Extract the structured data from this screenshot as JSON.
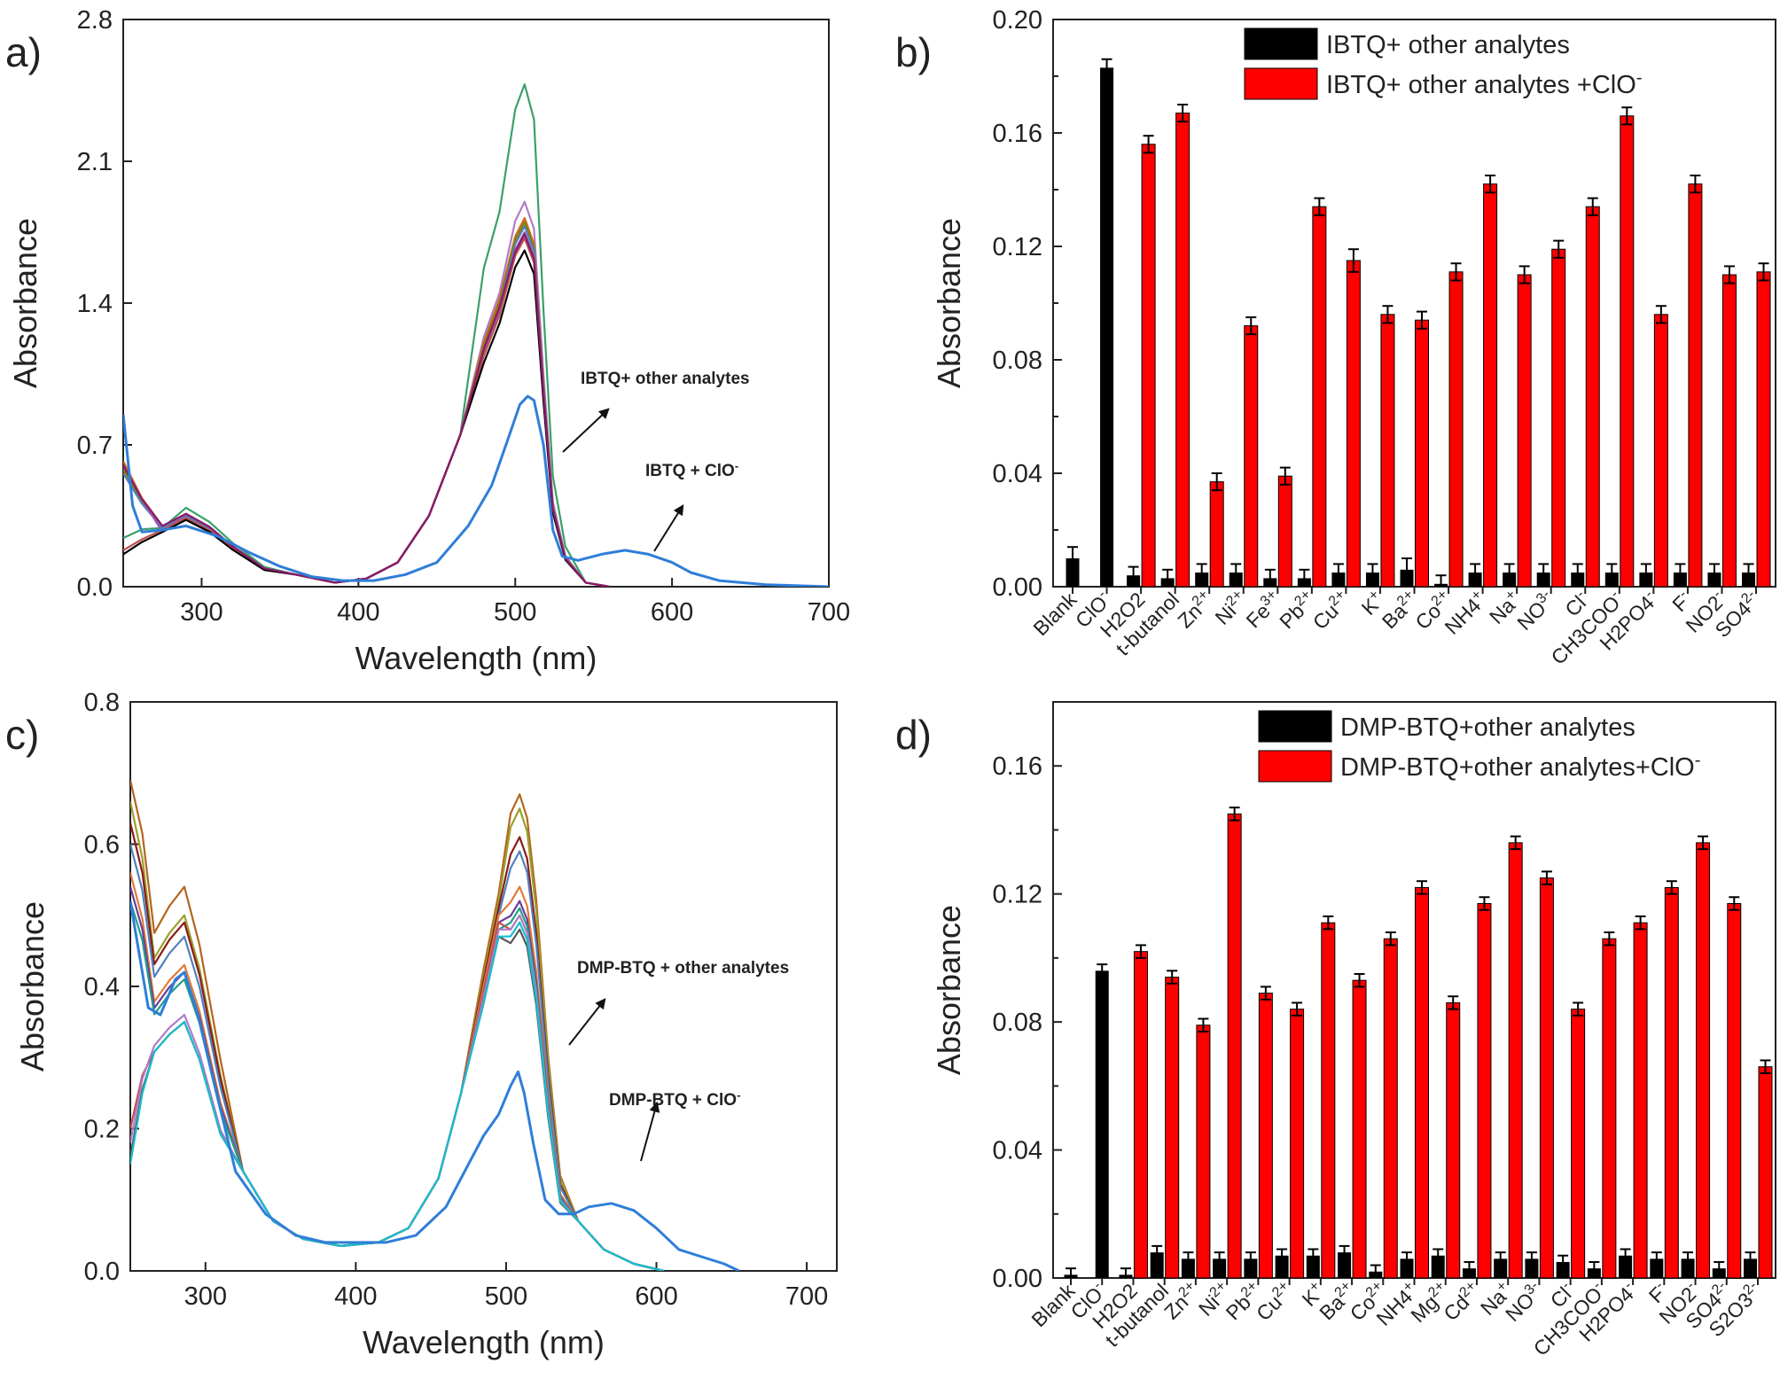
{
  "chart_data": [
    {
      "panel": "a)",
      "type": "line",
      "xlabel": "Wavelength (nm)",
      "ylabel": "Absorbance",
      "xlim": [
        250,
        700
      ],
      "ylim": [
        0,
        2.8
      ],
      "xticks": [
        "300",
        "400",
        "500",
        "600",
        "700"
      ],
      "yticks": [
        "0.0",
        "0.7",
        "1.4",
        "2.1",
        "2.8"
      ],
      "annotations": [
        {
          "id": "ann1",
          "text": "IBTQ+ other analytes"
        },
        {
          "id": "ann2",
          "text": "IBTQ + ClO",
          "sup": "-"
        }
      ],
      "series": [
        {
          "name": "IBTQ + other analytes (green)",
          "color": "#3aa06a",
          "peak": 2.48,
          "uv": 0.39,
          "base": 0.29,
          "start": 0.24,
          "shoulder": 1.85
        },
        {
          "name": "analyte 2",
          "color": "#b07cc8",
          "peak": 1.9,
          "uv": 0.36,
          "base": 0.28,
          "start": 0.6,
          "shoulder": 1.45
        },
        {
          "name": "analyte 3",
          "color": "#d2691e",
          "peak": 1.82,
          "uv": 0.35,
          "base": 0.3,
          "start": 0.62,
          "shoulder": 1.42
        },
        {
          "name": "analyte 4",
          "color": "#808000",
          "peak": 1.8,
          "uv": 0.34,
          "base": 0.3,
          "start": 0.58,
          "shoulder": 1.4
        },
        {
          "name": "analyte 5",
          "color": "#4f81bd",
          "peak": 1.78,
          "uv": 0.35,
          "base": 0.29,
          "start": 0.56,
          "shoulder": 1.38
        },
        {
          "name": "analyte 6",
          "color": "#9b59b6",
          "peak": 1.75,
          "uv": 0.36,
          "base": 0.27,
          "start": 0.6,
          "shoulder": 1.36
        },
        {
          "name": "analyte 7",
          "color": "#c0504d",
          "peak": 1.72,
          "uv": 0.34,
          "base": 0.28,
          "start": 0.18,
          "shoulder": 1.34
        },
        {
          "name": "analyte 8",
          "color": "#000000",
          "peak": 1.66,
          "uv": 0.33,
          "base": 0.27,
          "start": 0.16,
          "shoulder": 1.3
        },
        {
          "name": "analyte 9",
          "color": "#8b1a6b",
          "peak": 1.74,
          "uv": 0.36,
          "base": 0.3,
          "start": 0.6,
          "shoulder": 1.38
        },
        {
          "name": "IBTQ + ClO-",
          "color": "#2f7ed8",
          "points": [
            [
              250,
              0.85
            ],
            [
              256,
              0.4
            ],
            [
              262,
              0.27
            ],
            [
              275,
              0.28
            ],
            [
              290,
              0.3
            ],
            [
              310,
              0.25
            ],
            [
              330,
              0.17
            ],
            [
              350,
              0.1
            ],
            [
              370,
              0.05
            ],
            [
              390,
              0.03
            ],
            [
              410,
              0.03
            ],
            [
              430,
              0.06
            ],
            [
              450,
              0.12
            ],
            [
              470,
              0.3
            ],
            [
              485,
              0.5
            ],
            [
              495,
              0.72
            ],
            [
              503,
              0.9
            ],
            [
              508,
              0.94
            ],
            [
              512,
              0.92
            ],
            [
              518,
              0.7
            ],
            [
              524,
              0.28
            ],
            [
              530,
              0.15
            ],
            [
              540,
              0.13
            ],
            [
              555,
              0.16
            ],
            [
              570,
              0.18
            ],
            [
              585,
              0.16
            ],
            [
              600,
              0.12
            ],
            [
              612,
              0.07
            ],
            [
              630,
              0.03
            ],
            [
              660,
              0.01
            ],
            [
              700,
              0.0
            ]
          ]
        }
      ]
    },
    {
      "panel": "b)",
      "type": "bar",
      "ylabel": "Absorbance",
      "ylim": [
        0,
        0.2
      ],
      "yticks": [
        "0.00",
        "0.04",
        "0.08",
        "0.12",
        "0.16",
        "0.20"
      ],
      "legend": [
        {
          "label": "IBTQ+ other analytes",
          "color": "#000000"
        },
        {
          "label": "IBTQ+ other analytes +ClO",
          "sup": "-",
          "color": "#ff0000"
        }
      ],
      "categories": [
        {
          "base": "Blank",
          "sup": "",
          "sub": ""
        },
        {
          "base": "ClO",
          "sup": "-",
          "sub": ""
        },
        {
          "base": "H2O2",
          "sup": "",
          "sub": ""
        },
        {
          "base": "t-butanol",
          "sup": "",
          "sub": ""
        },
        {
          "base": "Zn",
          "sup": "2+",
          "sub": ""
        },
        {
          "base": "Ni",
          "sup": "2+",
          "sub": ""
        },
        {
          "base": "Fe",
          "sup": "3+",
          "sub": ""
        },
        {
          "base": "Pb",
          "sup": "2+",
          "sub": ""
        },
        {
          "base": "Cu",
          "sup": "2+",
          "sub": ""
        },
        {
          "base": "K",
          "sup": "+",
          "sub": ""
        },
        {
          "base": "Ba",
          "sup": "2+",
          "sub": ""
        },
        {
          "base": "Co",
          "sup": "2+",
          "sub": ""
        },
        {
          "base": "NH4",
          "sup": "+",
          "sub": ""
        },
        {
          "base": "Na",
          "sup": "+",
          "sub": ""
        },
        {
          "base": "NO",
          "sup": "3-",
          "sub": ""
        },
        {
          "base": "Cl",
          "sup": "-",
          "sub": ""
        },
        {
          "base": "CH3COO",
          "sup": "-",
          "sub": ""
        },
        {
          "base": "H2PO4",
          "sup": "-",
          "sub": ""
        },
        {
          "base": "F",
          "sup": "-",
          "sub": ""
        },
        {
          "base": "NO2",
          "sup": "-",
          "sub": ""
        },
        {
          "base": "SO4",
          "sup": "2-",
          "sub": ""
        }
      ],
      "series": [
        {
          "name": "IBTQ+ other analytes",
          "values": [
            0.01,
            0.183,
            0.004,
            0.003,
            0.005,
            0.005,
            0.003,
            0.003,
            0.005,
            0.005,
            0.006,
            0.001,
            0.005,
            0.005,
            0.005,
            0.005,
            0.005,
            0.005,
            0.005,
            0.005,
            0.005
          ],
          "errors": [
            0.004,
            0.003,
            0.003,
            0.003,
            0.003,
            0.003,
            0.003,
            0.003,
            0.003,
            0.003,
            0.004,
            0.003,
            0.003,
            0.003,
            0.003,
            0.003,
            0.003,
            0.003,
            0.003,
            0.003,
            0.003
          ]
        },
        {
          "name": "IBTQ+ other analytes +ClO-",
          "values": [
            null,
            null,
            0.156,
            0.167,
            0.037,
            0.092,
            0.039,
            0.134,
            0.115,
            0.096,
            0.094,
            0.111,
            0.142,
            0.11,
            0.119,
            0.134,
            0.166,
            0.096,
            0.142,
            0.11,
            0.111
          ],
          "errors": [
            0,
            0,
            0.003,
            0.003,
            0.003,
            0.003,
            0.003,
            0.003,
            0.004,
            0.003,
            0.003,
            0.003,
            0.003,
            0.003,
            0.003,
            0.003,
            0.003,
            0.003,
            0.003,
            0.003,
            0.003
          ]
        }
      ]
    },
    {
      "panel": "c)",
      "type": "line",
      "xlabel": "Wavelength (nm)",
      "ylabel": "Absorbance",
      "xlim": [
        250,
        720
      ],
      "ylim": [
        0,
        0.8
      ],
      "xticks": [
        "300",
        "400",
        "500",
        "600",
        "700"
      ],
      "yticks": [
        "0.0",
        "0.2",
        "0.4",
        "0.6",
        "0.8"
      ],
      "annotations": [
        {
          "id": "ann1",
          "text": "DMP-BTQ + other analytes"
        },
        {
          "id": "ann2",
          "text": "DMP-BTQ + ClO",
          "sup": "-"
        }
      ],
      "series": [
        {
          "name": "analyte 1",
          "color": "#b5651d",
          "start": 0.69,
          "uv": 0.54,
          "peak": 0.67,
          "shoulder": 0.53
        },
        {
          "name": "analyte 2",
          "color": "#9aa02a",
          "start": 0.66,
          "uv": 0.5,
          "peak": 0.65,
          "shoulder": 0.52
        },
        {
          "name": "analyte 3",
          "color": "#8b1a1a",
          "start": 0.63,
          "uv": 0.49,
          "peak": 0.61,
          "shoulder": 0.51
        },
        {
          "name": "analyte 4",
          "color": "#4f81bd",
          "start": 0.6,
          "uv": 0.47,
          "peak": 0.59,
          "shoulder": 0.5
        },
        {
          "name": "analyte 5",
          "color": "#e07b39",
          "start": 0.56,
          "uv": 0.43,
          "peak": 0.54,
          "shoulder": 0.5
        },
        {
          "name": "analyte 6",
          "color": "#6a3d9a",
          "start": 0.54,
          "uv": 0.42,
          "peak": 0.52,
          "shoulder": 0.49
        },
        {
          "name": "analyte 7",
          "color": "#1f9e89",
          "start": 0.52,
          "uv": 0.41,
          "peak": 0.51,
          "shoulder": 0.48
        },
        {
          "name": "analyte 8",
          "color": "#c0504d",
          "start": 0.2,
          "uv": 0.35,
          "peak": 0.5,
          "shoulder": 0.49
        },
        {
          "name": "analyte 9",
          "color": "#b07cc8",
          "start": 0.18,
          "uv": 0.36,
          "peak": 0.5,
          "shoulder": 0.48
        },
        {
          "name": "analyte 10",
          "color": "#555555",
          "start": 0.16,
          "uv": 0.35,
          "peak": 0.48,
          "shoulder": 0.47
        },
        {
          "name": "analyte 11",
          "color": "#17becf",
          "start": 0.15,
          "uv": 0.35,
          "peak": 0.49,
          "shoulder": 0.47
        },
        {
          "name": "DMP-BTQ + ClO-",
          "color": "#2f7ed8",
          "points": [
            [
              250,
              0.52
            ],
            [
              262,
              0.37
            ],
            [
              270,
              0.36
            ],
            [
              280,
              0.41
            ],
            [
              286,
              0.42
            ],
            [
              295,
              0.36
            ],
            [
              305,
              0.27
            ],
            [
              320,
              0.14
            ],
            [
              340,
              0.08
            ],
            [
              360,
              0.05
            ],
            [
              380,
              0.04
            ],
            [
              400,
              0.04
            ],
            [
              420,
              0.04
            ],
            [
              440,
              0.05
            ],
            [
              460,
              0.09
            ],
            [
              475,
              0.15
            ],
            [
              485,
              0.19
            ],
            [
              495,
              0.22
            ],
            [
              503,
              0.26
            ],
            [
              508,
              0.28
            ],
            [
              512,
              0.25
            ],
            [
              518,
              0.18
            ],
            [
              526,
              0.1
            ],
            [
              535,
              0.08
            ],
            [
              545,
              0.08
            ],
            [
              555,
              0.09
            ],
            [
              570,
              0.095
            ],
            [
              585,
              0.085
            ],
            [
              600,
              0.06
            ],
            [
              615,
              0.03
            ],
            [
              630,
              0.02
            ],
            [
              645,
              0.01
            ],
            [
              655,
              0.0
            ]
          ]
        }
      ]
    },
    {
      "panel": "d)",
      "type": "bar",
      "ylabel": "Absorbance",
      "ylim": [
        0,
        0.18
      ],
      "yticks": [
        "0.00",
        "0.04",
        "0.08",
        "0.12",
        "0.16"
      ],
      "legend": [
        {
          "label": "DMP-BTQ+other analytes",
          "color": "#000000"
        },
        {
          "label": "DMP-BTQ+other analytes+ClO",
          "sup": "-",
          "color": "#ff0000"
        }
      ],
      "categories": [
        {
          "base": "Blank",
          "sup": ""
        },
        {
          "base": "ClO",
          "sup": "-"
        },
        {
          "base": "H2O2",
          "sup": ""
        },
        {
          "base": "t-butanol",
          "sup": ""
        },
        {
          "base": "Zn",
          "sup": "2+"
        },
        {
          "base": "Ni",
          "sup": "2+"
        },
        {
          "base": "Pb",
          "sup": "2+"
        },
        {
          "base": "Cu",
          "sup": "2+"
        },
        {
          "base": "K",
          "sup": "+"
        },
        {
          "base": "Ba",
          "sup": "2+"
        },
        {
          "base": "Co",
          "sup": "2+"
        },
        {
          "base": "NH4",
          "sup": "+"
        },
        {
          "base": "Mg",
          "sup": "2+"
        },
        {
          "base": "Cd",
          "sup": "2+"
        },
        {
          "base": "Na",
          "sup": "+"
        },
        {
          "base": "NO",
          "sup": "3-"
        },
        {
          "base": "Cl",
          "sup": "-"
        },
        {
          "base": "CH3COO",
          "sup": "-"
        },
        {
          "base": "H2PO4",
          "sup": "-"
        },
        {
          "base": "F",
          "sup": "-"
        },
        {
          "base": "NO2",
          "sup": "-"
        },
        {
          "base": "SO4",
          "sup": "2-"
        },
        {
          "base": "S2O3",
          "sup": "2-"
        }
      ],
      "series": [
        {
          "name": "DMP-BTQ+other analytes",
          "values": [
            0.001,
            0.096,
            0.001,
            0.008,
            0.006,
            0.006,
            0.006,
            0.007,
            0.007,
            0.008,
            0.002,
            0.006,
            0.007,
            0.003,
            0.006,
            0.006,
            0.005,
            0.003,
            0.007,
            0.006,
            0.006,
            0.003,
            0.006
          ],
          "errors": [
            0.002,
            0.002,
            0.002,
            0.002,
            0.002,
            0.002,
            0.002,
            0.002,
            0.002,
            0.002,
            0.002,
            0.002,
            0.002,
            0.002,
            0.002,
            0.002,
            0.002,
            0.002,
            0.002,
            0.002,
            0.002,
            0.002,
            0.002
          ]
        },
        {
          "name": "DMP-BTQ+other analytes+ClO-",
          "values": [
            null,
            null,
            0.102,
            0.094,
            0.079,
            0.145,
            0.089,
            0.084,
            0.111,
            0.093,
            0.106,
            0.122,
            0.086,
            0.117,
            0.136,
            0.125,
            0.084,
            0.106,
            0.111,
            0.122,
            0.136,
            0.117,
            0.066
          ],
          "errors": [
            0,
            0,
            0.002,
            0.002,
            0.002,
            0.002,
            0.002,
            0.002,
            0.002,
            0.002,
            0.002,
            0.002,
            0.002,
            0.002,
            0.002,
            0.002,
            0.002,
            0.002,
            0.002,
            0.002,
            0.002,
            0.002,
            0.002
          ]
        }
      ]
    }
  ]
}
